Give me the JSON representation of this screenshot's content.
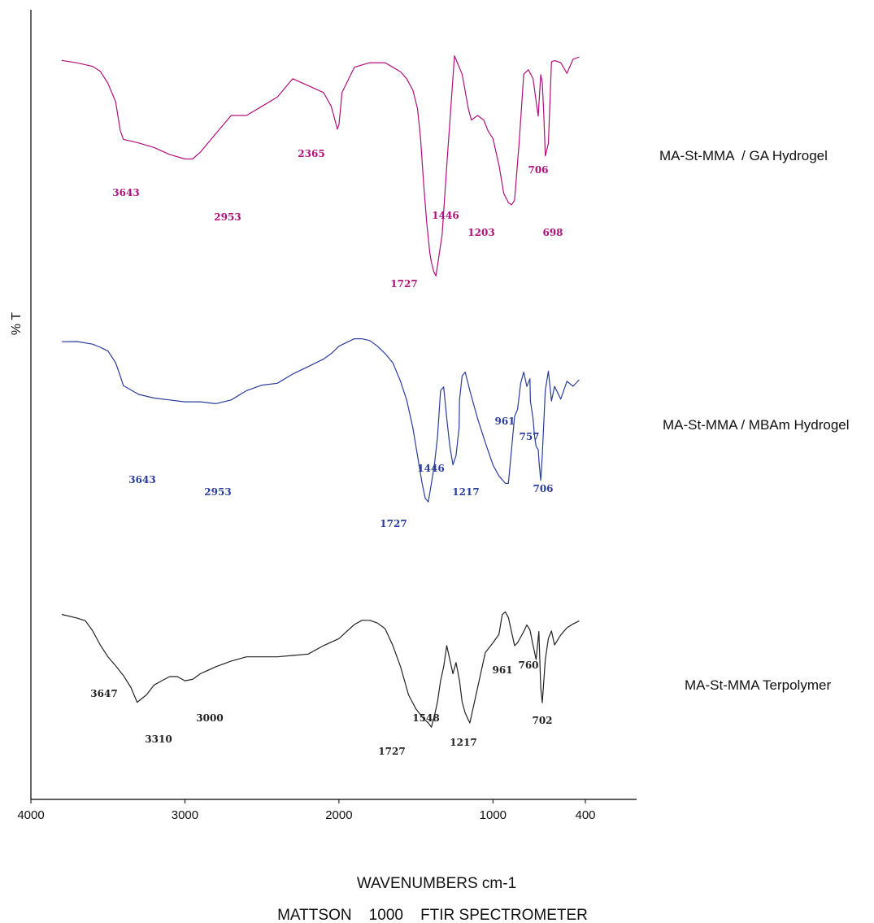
{
  "chart_data": {
    "type": "line",
    "title": "",
    "xlabel": "WAVENUMBERS cm-1",
    "subtitle": "MATTSON    1000    FTIR SPECTROMETER",
    "ylabel": "% T",
    "x_ticks": [
      4000,
      3000,
      2000,
      1000,
      400
    ],
    "x_axis_reversed": true,
    "xlim": [
      4000,
      400
    ],
    "grid": false,
    "legend": "labels to the right of each trace",
    "series": [
      {
        "name": "MA-St-MMA  / GA Hydrogel",
        "color": "#b0107a",
        "x": [
          3800,
          3700,
          3600,
          3550,
          3500,
          3450,
          3420,
          3400,
          3300,
          3200,
          3100,
          3000,
          2950,
          2900,
          2800,
          2700,
          2600,
          2500,
          2400,
          2300,
          2200,
          2100,
          2050,
          2010,
          2000,
          1980,
          1900,
          1800,
          1700,
          1650,
          1600,
          1560,
          1520,
          1490,
          1470,
          1450,
          1430,
          1410,
          1400,
          1385,
          1370,
          1330,
          1300,
          1250,
          1200,
          1160,
          1140,
          1100,
          1060,
          1030,
          1000,
          960,
          930,
          900,
          880,
          860,
          830,
          800,
          770,
          740,
          720,
          706,
          690,
          680,
          670,
          660,
          640,
          620,
          600,
          560,
          520,
          480,
          440
        ],
        "y": [
          96,
          95,
          93,
          91,
          86,
          78,
          65,
          62,
          60,
          58,
          55,
          53,
          53,
          56,
          64,
          72,
          72,
          76,
          80,
          88,
          85,
          82,
          76,
          66,
          68,
          82,
          93,
          95,
          95,
          93,
          91,
          88,
          83,
          75,
          62,
          42,
          25,
          12,
          8,
          4,
          2,
          20,
          50,
          98,
          90,
          75,
          70,
          72,
          70,
          65,
          62,
          50,
          38,
          34,
          33,
          35,
          60,
          90,
          92,
          88,
          78,
          72,
          90,
          86,
          72,
          54,
          60,
          95,
          96,
          95,
          90,
          96,
          98
        ]
      },
      {
        "name": "MA-St-MMA / MBAm Hydrogel",
        "color": "#2a3d9a",
        "x": [
          3800,
          3700,
          3600,
          3550,
          3500,
          3450,
          3420,
          3400,
          3300,
          3200,
          3100,
          3000,
          2950,
          2900,
          2800,
          2700,
          2600,
          2500,
          2400,
          2300,
          2200,
          2100,
          2050,
          2000,
          1950,
          1900,
          1850,
          1800,
          1750,
          1700,
          1650,
          1600,
          1560,
          1520,
          1500,
          1480,
          1460,
          1440,
          1420,
          1400,
          1380,
          1360,
          1340,
          1320,
          1300,
          1280,
          1260,
          1240,
          1220,
          1217,
          1200,
          1180,
          1150,
          1100,
          1050,
          1000,
          961,
          940,
          920,
          900,
          880,
          860,
          840,
          820,
          800,
          780,
          760,
          757,
          740,
          730,
          720,
          706,
          700,
          690,
          680,
          660,
          640,
          620,
          600,
          560,
          520,
          480,
          440
        ],
        "y": [
          97,
          96,
          95,
          94,
          91,
          85,
          78,
          73,
          68,
          66,
          65,
          64,
          64,
          64,
          63,
          65,
          70,
          73,
          74,
          79,
          83,
          87,
          90,
          94,
          96,
          98,
          98,
          97,
          94,
          90,
          85,
          75,
          65,
          50,
          40,
          30,
          20,
          12,
          10,
          20,
          30,
          45,
          70,
          72,
          55,
          40,
          30,
          35,
          50,
          65,
          78,
          80,
          70,
          55,
          42,
          30,
          24,
          22,
          20,
          20,
          38,
          56,
          60,
          74,
          80,
          72,
          76,
          65,
          55,
          45,
          40,
          38,
          30,
          22,
          35,
          70,
          80,
          65,
          72,
          66,
          75,
          72,
          76
        ]
      },
      {
        "name": "MA-St-MMA Terpolymer",
        "color": "#222222",
        "x": [
          3800,
          3700,
          3647,
          3600,
          3550,
          3500,
          3450,
          3400,
          3350,
          3310,
          3250,
          3200,
          3150,
          3100,
          3050,
          3000,
          2950,
          2900,
          2800,
          2700,
          2600,
          2500,
          2400,
          2300,
          2200,
          2100,
          2000,
          1950,
          1900,
          1850,
          1800,
          1750,
          1700,
          1650,
          1600,
          1548,
          1500,
          1450,
          1420,
          1400,
          1380,
          1360,
          1340,
          1320,
          1300,
          1280,
          1260,
          1240,
          1217,
          1200,
          1180,
          1150,
          1100,
          1050,
          1000,
          961,
          940,
          920,
          900,
          880,
          860,
          840,
          820,
          800,
          780,
          760,
          740,
          720,
          702,
          690,
          680,
          660,
          640,
          620,
          600,
          560,
          520,
          480,
          440
        ],
        "y": [
          92,
          90,
          88,
          80,
          70,
          62,
          55,
          48,
          40,
          30,
          35,
          42,
          45,
          48,
          48,
          45,
          46,
          50,
          55,
          59,
          62,
          62,
          62,
          63,
          64,
          70,
          75,
          80,
          85,
          88,
          88,
          86,
          82,
          70,
          55,
          35,
          25,
          18,
          15,
          12,
          20,
          30,
          45,
          55,
          70,
          60,
          50,
          58,
          45,
          30,
          22,
          15,
          40,
          65,
          72,
          78,
          92,
          94,
          90,
          80,
          70,
          72,
          76,
          80,
          85,
          82,
          70,
          60,
          80,
          40,
          30,
          60,
          75,
          80,
          70,
          78,
          82,
          85,
          88
        ]
      }
    ],
    "annotations": [
      {
        "series": 0,
        "text": "3643"
      },
      {
        "series": 0,
        "text": "2953"
      },
      {
        "series": 0,
        "text": "2365"
      },
      {
        "series": 0,
        "text": "1727"
      },
      {
        "series": 0,
        "text": "1446"
      },
      {
        "series": 0,
        "text": "1203"
      },
      {
        "series": 0,
        "text": "706"
      },
      {
        "series": 0,
        "text": "698"
      },
      {
        "series": 1,
        "text": "3643"
      },
      {
        "series": 1,
        "text": "2953"
      },
      {
        "series": 1,
        "text": "1727"
      },
      {
        "series": 1,
        "text": "1446"
      },
      {
        "series": 1,
        "text": "1217"
      },
      {
        "series": 1,
        "text": "961"
      },
      {
        "series": 1,
        "text": "757"
      },
      {
        "series": 1,
        "text": "706"
      },
      {
        "series": 2,
        "text": "3647"
      },
      {
        "series": 2,
        "text": "3310"
      },
      {
        "series": 2,
        "text": "3000"
      },
      {
        "series": 2,
        "text": "1727"
      },
      {
        "series": 2,
        "text": "1548"
      },
      {
        "series": 2,
        "text": "1217"
      },
      {
        "series": 2,
        "text": "961"
      },
      {
        "series": 2,
        "text": "760"
      },
      {
        "series": 2,
        "text": "702"
      }
    ]
  }
}
